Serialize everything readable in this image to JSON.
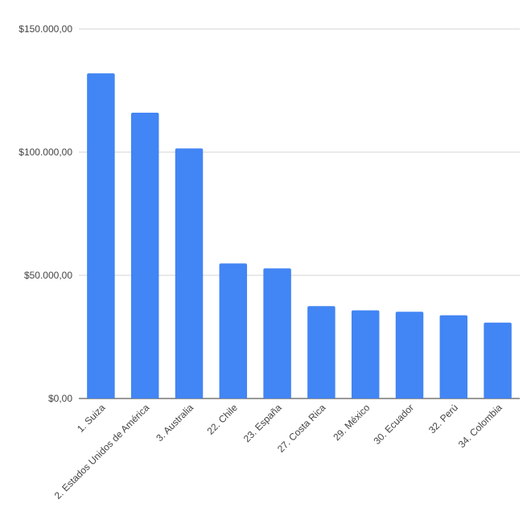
{
  "chart_data": {
    "type": "bar",
    "title": "",
    "xlabel": "",
    "ylabel": "",
    "categories": [
      "1. Suiza",
      "2. Estados Unidos de América",
      "3. Australia",
      "22. Chile",
      "23. España",
      "27. Costa Rica",
      "29. México",
      "30. Ecuador",
      "32. Perú",
      "34. Colombia"
    ],
    "values": [
      132000,
      116000,
      101500,
      54800,
      52800,
      37500,
      35800,
      35200,
      33800,
      30800
    ],
    "ylim": [
      0,
      150000
    ],
    "yticks": [
      0,
      50000,
      100000,
      150000
    ],
    "ytick_labels": [
      "$0,00",
      "$50.000,00",
      "$100.000,00",
      "$150.000,00"
    ],
    "grid": true,
    "legend": "none",
    "bar_color": "#4285f4"
  }
}
